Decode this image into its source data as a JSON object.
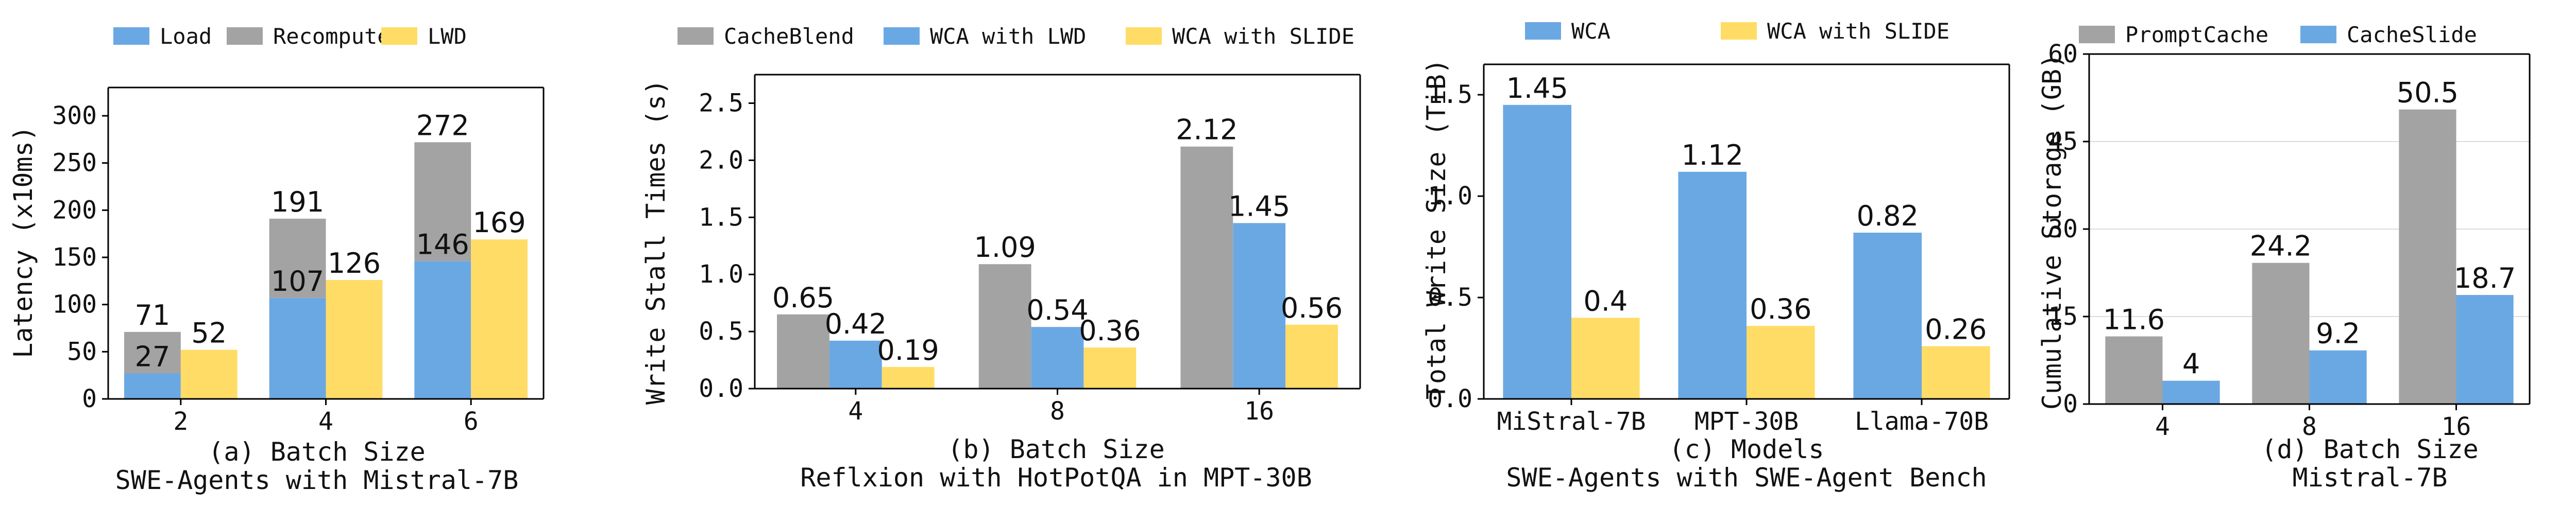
{
  "colors": {
    "blue": "#6aa8e3",
    "gray": "#a3a3a3",
    "yellow": "#ffdc66",
    "axis": "#000000",
    "grid": "#dcdcdc"
  },
  "chart_data": [
    {
      "type": "bar",
      "stacked_first_series": true,
      "legend": [
        "Load",
        "Recompute",
        "LWD"
      ],
      "legend_colors": [
        "blue",
        "gray",
        "yellow"
      ],
      "categories": [
        "2",
        "4",
        "6"
      ],
      "series": [
        {
          "name": "Load",
          "values": [
            27,
            107,
            146
          ],
          "color": "blue",
          "group": 0
        },
        {
          "name": "Recompute",
          "values": [
            44,
            84,
            126
          ],
          "color": "gray",
          "group": 0,
          "stack_on": "Load"
        },
        {
          "name": "LWD",
          "values": [
            52,
            126,
            169
          ],
          "color": "yellow",
          "group": 1
        }
      ],
      "data_labels": [
        {
          "category": 0,
          "group": 0,
          "value_pos": 27,
          "text": "27"
        },
        {
          "category": 0,
          "group": 0,
          "value_pos": 71,
          "text": "71"
        },
        {
          "category": 0,
          "group": 1,
          "value_pos": 52,
          "text": "52"
        },
        {
          "category": 1,
          "group": 0,
          "value_pos": 107,
          "text": "107"
        },
        {
          "category": 1,
          "group": 0,
          "value_pos": 191,
          "text": "191"
        },
        {
          "category": 1,
          "group": 1,
          "value_pos": 126,
          "text": "126"
        },
        {
          "category": 2,
          "group": 0,
          "value_pos": 146,
          "text": "146"
        },
        {
          "category": 2,
          "group": 0,
          "value_pos": 272,
          "text": "272"
        },
        {
          "category": 2,
          "group": 1,
          "value_pos": 169,
          "text": "169"
        }
      ],
      "ylabel": "Latency (x10ms)",
      "xlabel": "(a) Batch Size",
      "subtitle": "SWE-Agents with Mistral-7B",
      "ylim": [
        0,
        330
      ],
      "yticks": [
        0,
        50,
        100,
        150,
        200,
        250,
        300
      ],
      "ytick_labels": [
        "0",
        "50",
        "100",
        "150",
        "200",
        "250",
        "300"
      ],
      "grid": false,
      "legend_position": "top"
    },
    {
      "type": "bar",
      "legend": [
        "CacheBlend",
        "WCA with LWD",
        "WCA with SLIDE"
      ],
      "legend_colors": [
        "gray",
        "blue",
        "yellow"
      ],
      "categories": [
        "4",
        "8",
        "16"
      ],
      "series": [
        {
          "name": "CacheBlend",
          "values": [
            0.65,
            1.09,
            2.12
          ],
          "labels": [
            "0.65",
            "1.09",
            "2.12"
          ],
          "color": "gray"
        },
        {
          "name": "WCA with LWD",
          "values": [
            0.42,
            0.54,
            1.45
          ],
          "labels": [
            "0.42",
            "0.54",
            "1.45"
          ],
          "color": "blue"
        },
        {
          "name": "WCA with SLIDE",
          "values": [
            0.19,
            0.36,
            0.56
          ],
          "labels": [
            "0.19",
            "0.36",
            "0.56"
          ],
          "color": "yellow"
        }
      ],
      "ylabel": "Write Stall Times (s)",
      "xlabel": "(b) Batch Size",
      "subtitle": "Reflxion with HotPotQA in MPT-30B",
      "ylim": [
        0,
        2.75
      ],
      "yticks": [
        0,
        0.5,
        1.0,
        1.5,
        2.0,
        2.5
      ],
      "ytick_labels": [
        "0.0",
        "0.5",
        "1.0",
        "1.5",
        "2.0",
        "2.5"
      ],
      "grid": false,
      "legend_position": "top"
    },
    {
      "type": "bar",
      "legend": [
        "WCA",
        "WCA with SLIDE"
      ],
      "legend_colors": [
        "blue",
        "yellow"
      ],
      "categories": [
        "MiStral-7B",
        "MPT-30B",
        "Llama-70B"
      ],
      "series": [
        {
          "name": "WCA",
          "values": [
            1.45,
            1.12,
            0.82
          ],
          "labels": [
            "1.45",
            "1.12",
            "0.82"
          ],
          "color": "blue"
        },
        {
          "name": "WCA with SLIDE",
          "values": [
            0.4,
            0.36,
            0.26
          ],
          "labels": [
            "0.4",
            "0.36",
            "0.26"
          ],
          "color": "yellow"
        }
      ],
      "ylabel": "Total Write Size (TiB)",
      "xlabel": "(c) Models",
      "subtitle": "SWE-Agents with SWE-Agent Bench",
      "ylim": [
        0,
        1.65
      ],
      "yticks": [
        0,
        0.5,
        1.0,
        1.5
      ],
      "ytick_labels": [
        "0.0",
        "0.5",
        "1.0",
        "1.5"
      ],
      "grid": false,
      "legend_position": "top"
    },
    {
      "type": "bar",
      "legend": [
        "PromptCache",
        "CacheSlide"
      ],
      "legend_colors": [
        "gray",
        "blue"
      ],
      "categories": [
        "4",
        "8",
        "16"
      ],
      "series": [
        {
          "name": "PromptCache",
          "values": [
            11.6,
            24.2,
            50.5
          ],
          "labels": [
            "11.6",
            "24.2",
            "50.5"
          ],
          "color": "gray"
        },
        {
          "name": "CacheSlide",
          "values": [
            4,
            9.2,
            18.7
          ],
          "labels": [
            "4",
            "9.2",
            "18.7"
          ],
          "color": "blue"
        }
      ],
      "ylabel": "Cumulative Storage (GB)",
      "xlabel": "(d) Batch Size",
      "subtitle": "Mistral-7B",
      "ylim": [
        0,
        60
      ],
      "yticks": [
        0,
        15,
        30,
        45,
        60
      ],
      "ytick_labels": [
        "0",
        "15",
        "30",
        "45",
        "60"
      ],
      "grid": true,
      "legend_position": "top"
    }
  ]
}
